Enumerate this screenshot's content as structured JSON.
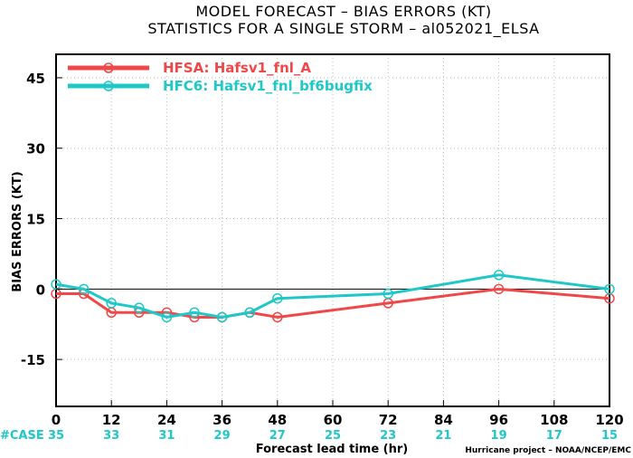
{
  "chart_data": {
    "type": "line",
    "title": "MODEL FORECAST – BIAS ERRORS (KT)",
    "subtitle": "STATISTICS FOR A SINGLE STORM – al052021_ELSA",
    "xlabel": "Forecast lead time (hr)",
    "ylabel": "BIAS ERRORS (KT)",
    "xlim": [
      0,
      120
    ],
    "ylim": [
      -25,
      50
    ],
    "xticks": [
      0,
      12,
      24,
      36,
      48,
      60,
      72,
      84,
      96,
      108,
      120
    ],
    "yticks": [
      -15,
      0,
      15,
      30,
      45
    ],
    "grid": true,
    "zero_line": true,
    "legend_position": "top-left",
    "series": [
      {
        "name": "HFSA: Hafsv1_fnl_A",
        "color": "#f04848",
        "x": [
          0,
          6,
          12,
          18,
          24,
          30,
          36,
          42,
          48,
          72,
          96,
          120
        ],
        "y": [
          -1,
          -1,
          -5,
          -5,
          -5,
          -6,
          -6,
          -5,
          -6,
          -3,
          0,
          -2
        ]
      },
      {
        "name": "HFC6: Hafsv1_fnl_bf6bugfix",
        "color": "#1fc8c8",
        "x": [
          0,
          6,
          12,
          18,
          24,
          30,
          36,
          42,
          48,
          72,
          96,
          120
        ],
        "y": [
          1,
          0,
          -3,
          -4,
          -6,
          -5,
          -6,
          -5,
          -2,
          -1,
          3,
          0
        ]
      }
    ],
    "case_label": "#CASE",
    "case_counts": [
      {
        "x": 0,
        "label": "35"
      },
      {
        "x": 12,
        "label": "33"
      },
      {
        "x": 24,
        "label": "31"
      },
      {
        "x": 36,
        "label": "29"
      },
      {
        "x": 48,
        "label": "27"
      },
      {
        "x": 60,
        "label": "25"
      },
      {
        "x": 72,
        "label": "23"
      },
      {
        "x": 84,
        "label": "21"
      },
      {
        "x": 96,
        "label": "19"
      },
      {
        "x": 108,
        "label": "17"
      },
      {
        "x": 120,
        "label": "15"
      }
    ],
    "case_color": "#1fc8c8",
    "credit": "Hurricane project – NOAA/NCEP/EMC"
  }
}
